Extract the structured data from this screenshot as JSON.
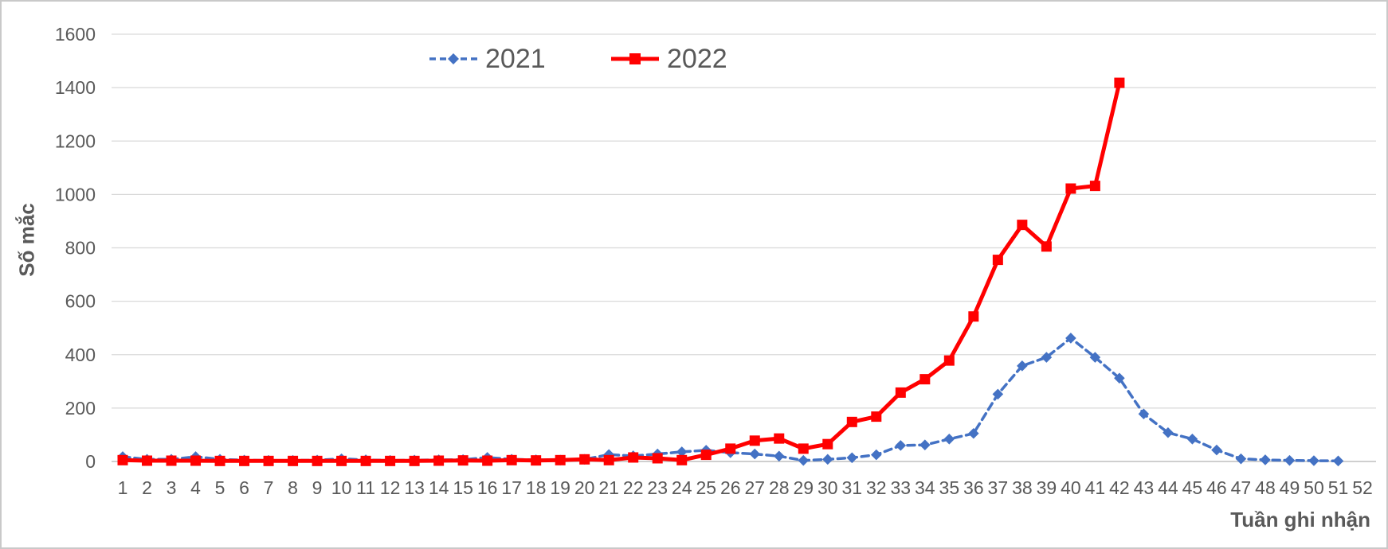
{
  "chart_data": {
    "type": "line",
    "title": "",
    "xlabel": "Tuần ghi nhận",
    "ylabel": "Số mắc",
    "x": [
      1,
      2,
      3,
      4,
      5,
      6,
      7,
      8,
      9,
      10,
      11,
      12,
      13,
      14,
      15,
      16,
      17,
      18,
      19,
      20,
      21,
      22,
      23,
      24,
      25,
      26,
      27,
      28,
      29,
      30,
      31,
      32,
      33,
      34,
      35,
      36,
      37,
      38,
      39,
      40,
      41,
      42,
      43,
      44,
      45,
      46,
      47,
      48,
      49,
      50,
      51,
      52
    ],
    "series": [
      {
        "name": "2021",
        "color": "#4472C4",
        "line_style": "dashed",
        "marker": "diamond",
        "values": [
          18,
          8,
          8,
          18,
          8,
          5,
          4,
          4,
          5,
          10,
          6,
          4,
          5,
          6,
          7,
          15,
          8,
          6,
          5,
          8,
          26,
          21,
          28,
          36,
          42,
          33,
          28,
          20,
          4,
          8,
          14,
          25,
          60,
          62,
          84,
          105,
          252,
          358,
          390,
          462,
          390,
          312,
          178,
          108,
          84,
          43,
          10,
          6,
          4,
          3,
          2
        ]
      },
      {
        "name": "2022",
        "color": "#FF0000",
        "line_style": "solid",
        "marker": "square",
        "values": [
          5,
          3,
          3,
          3,
          2,
          2,
          2,
          2,
          2,
          2,
          2,
          2,
          2,
          3,
          4,
          3,
          5,
          4,
          5,
          8,
          5,
          15,
          12,
          5,
          25,
          48,
          78,
          86,
          48,
          65,
          148,
          168,
          258,
          308,
          378,
          543,
          755,
          886,
          805,
          1022,
          1032,
          1418
        ]
      }
    ],
    "ylim": [
      0,
      1600
    ],
    "yticks": [
      0,
      200,
      400,
      600,
      800,
      1000,
      1200,
      1400,
      1600
    ],
    "grid": true,
    "legend_position": "top",
    "text_color": "#595959",
    "grid_color": "#D9D9D9",
    "axis_line_color": "#BFBFBF"
  }
}
